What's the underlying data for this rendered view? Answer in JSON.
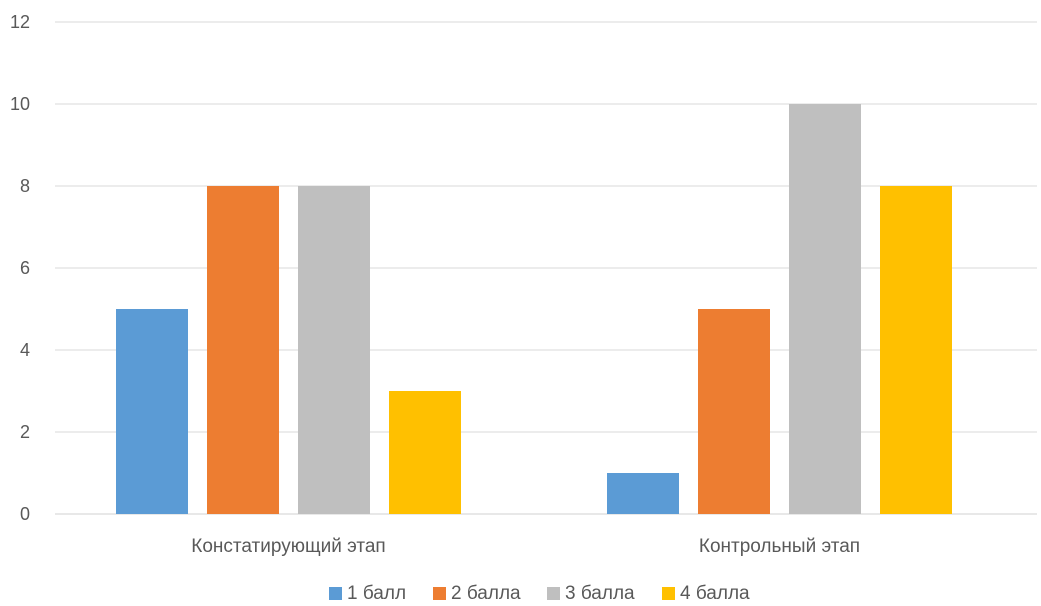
{
  "chart_data": {
    "type": "bar",
    "title": "",
    "xlabel": "",
    "ylabel": "",
    "categories": [
      "Констатирующий этап",
      "Контрольный этап"
    ],
    "series": [
      {
        "name": "1 балл",
        "values": [
          5,
          1
        ],
        "color": "#5B9BD5"
      },
      {
        "name": "2 балла",
        "values": [
          8,
          5
        ],
        "color": "#ED7D31"
      },
      {
        "name": "3 балла",
        "values": [
          8,
          10
        ],
        "color": "#BFBFBF"
      },
      {
        "name": "4 балла",
        "values": [
          3,
          8
        ],
        "color": "#FFC000"
      }
    ],
    "ylim": [
      0,
      12
    ],
    "yticks": [
      "0",
      "2",
      "4",
      "6",
      "8",
      "10",
      "12"
    ],
    "grid": true,
    "legend": "bottom"
  }
}
